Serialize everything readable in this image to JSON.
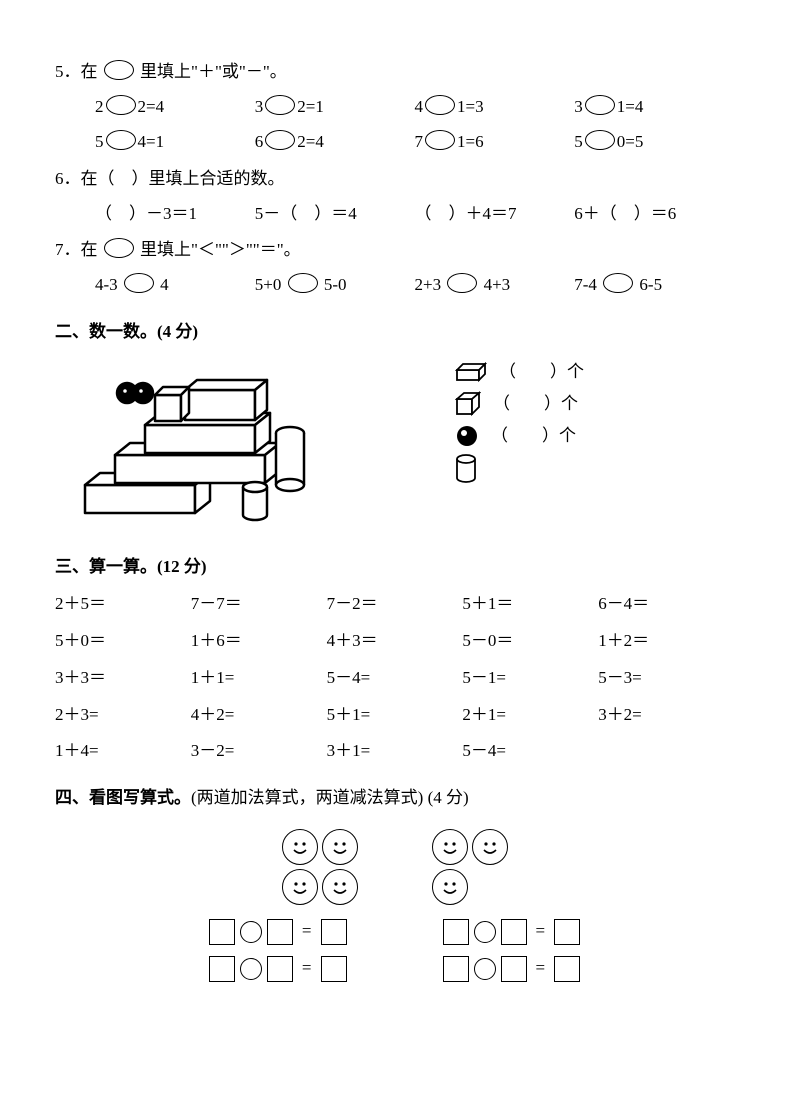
{
  "q5": {
    "title": "5．在",
    "title2": "里填上\"＋\"或\"－\"。",
    "rows": [
      [
        "2",
        "2=4",
        "3",
        "2=1",
        "4",
        "1=3",
        "3",
        "1=4"
      ],
      [
        "5",
        "4=1",
        "6",
        "2=4",
        "7",
        "1=6",
        "5",
        "0=5"
      ]
    ]
  },
  "q6": {
    "title": "6．在（　）里填上合适的数。",
    "items": [
      "（　）－3＝1",
      "5－（　）＝4",
      "（　）＋4＝7",
      "6＋（　）＝6"
    ]
  },
  "q7": {
    "title": "7．在",
    "title2": "里填上\"＜\"\"＞\"\"＝\"。",
    "items": [
      {
        "l": "4-3",
        "r": "4"
      },
      {
        "l": "5+0",
        "r": "5-0"
      },
      {
        "l": "2+3",
        "r": "4+3"
      },
      {
        "l": "7-4",
        "r": "6-5"
      }
    ]
  },
  "sec2": {
    "title": "二、数一数。(4 分)",
    "counts": [
      {
        "label": "（　　）个"
      },
      {
        "label": "（　　）个"
      },
      {
        "label": "（　　）个"
      },
      {
        "label": ""
      }
    ]
  },
  "sec3": {
    "title": "三、算一算。(12 分)",
    "rows": [
      [
        "2＋5＝",
        "7－7＝",
        "7－2＝",
        "5＋1＝",
        "6－4＝"
      ],
      [
        "5＋0＝",
        "1＋6＝",
        "4＋3＝",
        "5－0＝",
        "1＋2＝"
      ],
      [
        "3＋3＝",
        "1＋1=",
        "5－4=",
        "5－1=",
        "5－3="
      ],
      [
        "2＋3=",
        "4＋2=",
        "5＋1=",
        "2＋1=",
        "3＋2="
      ],
      [
        "1＋4=",
        "3－2=",
        "3＋1=",
        "5－4=",
        ""
      ]
    ]
  },
  "sec4": {
    "title": "四、看图写算式。",
    "sub": "(两道加法算式，两道减法算式)  (4 分)",
    "group1_rows": [
      2,
      2
    ],
    "group2_rows": [
      2,
      1
    ],
    "eq_sign": "="
  },
  "colors": {
    "line": "#000000",
    "bg": "#ffffff"
  }
}
